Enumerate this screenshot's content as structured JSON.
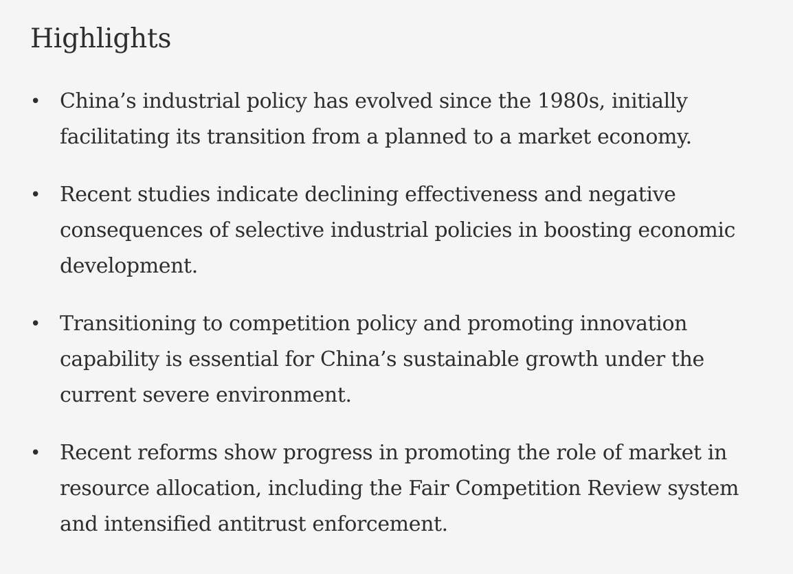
{
  "section": {
    "title": "Highlights",
    "bullet_symbol": "•",
    "items": [
      {
        "text": "China’s industrial policy has evolved since the 1980s, initially facilitating its transition from a planned to a market economy."
      },
      {
        "text": "Recent studies indicate declining effectiveness and negative consequences of selective industrial policies in boosting economic development."
      },
      {
        "text": "Transitioning to competition policy and promoting innovation capability is essential for China’s sustainable growth under the current severe environment."
      },
      {
        "text": "Recent reforms show progress in promoting the role of market in resource allocation, including the Fair Competition Review system and intensified antitrust enforcement."
      }
    ]
  }
}
